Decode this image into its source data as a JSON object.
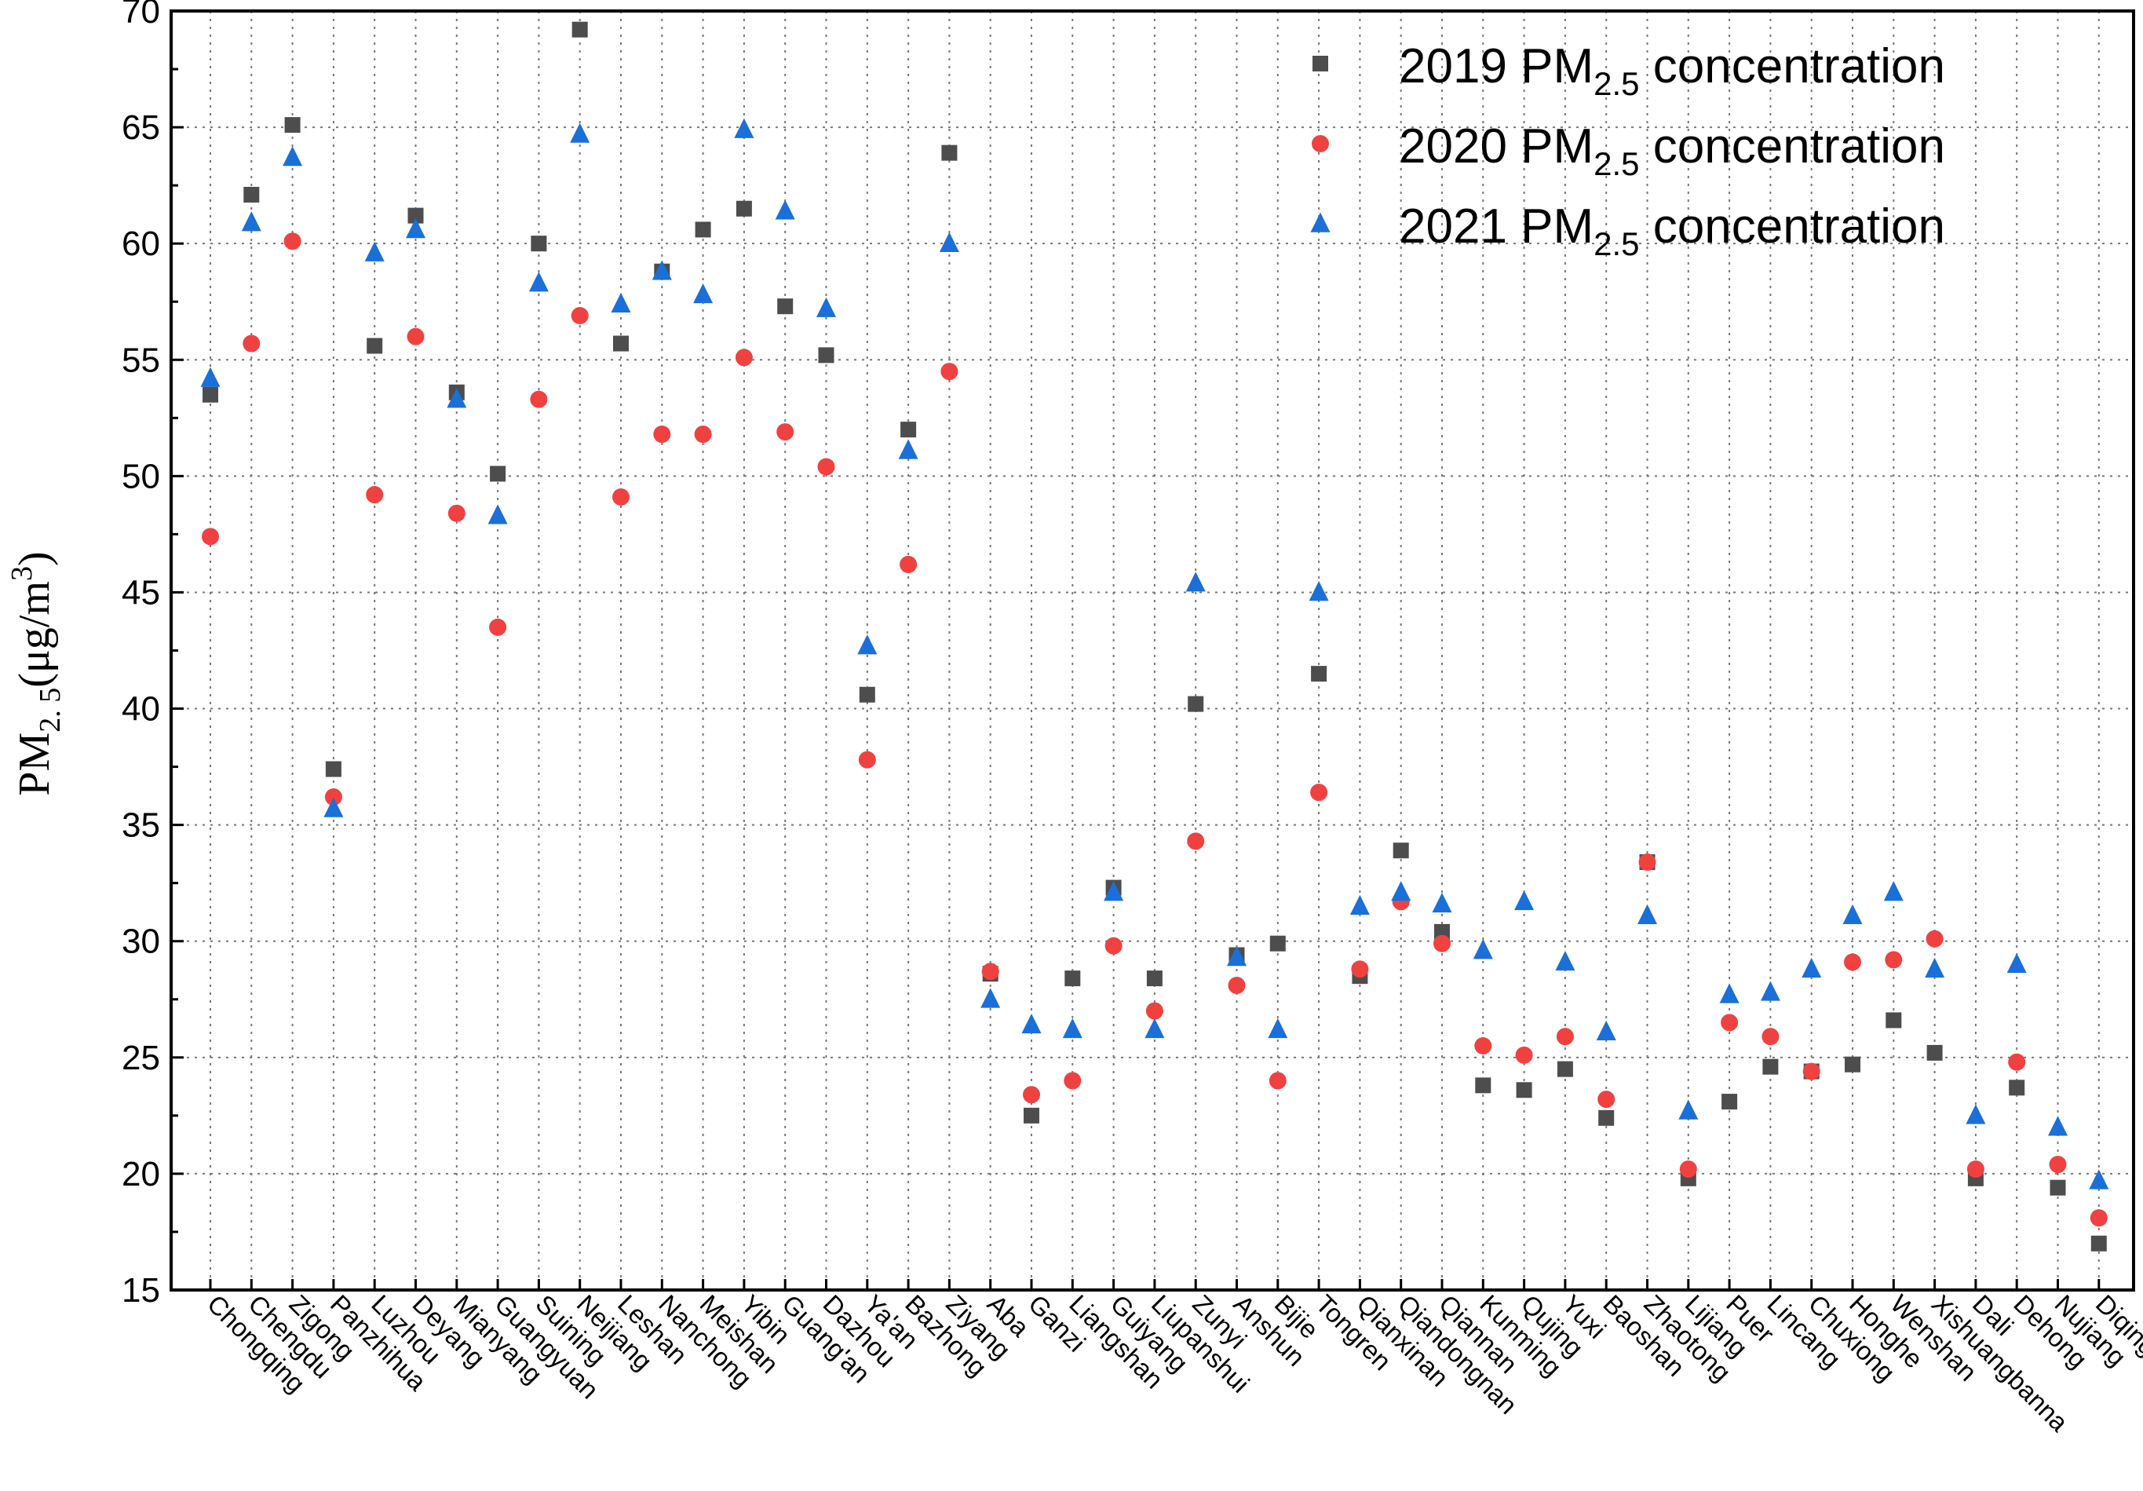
{
  "chart_data": {
    "type": "scatter",
    "title": "",
    "xlabel": "",
    "ylabel_parts": {
      "main": "PM",
      "sub": "2. 5",
      "unit_open": "(μg/m",
      "unit_sup": "3",
      "unit_close": ")"
    },
    "ylim": [
      15,
      70
    ],
    "yticks": [
      15,
      20,
      25,
      30,
      35,
      40,
      45,
      50,
      55,
      60,
      65,
      70
    ],
    "grid": true,
    "legend_position": "top-right",
    "categories": [
      "Chongqing",
      "Chengdu",
      "Zigong",
      "Panzhihua",
      "Luzhou",
      "Deyang",
      "Mianyang",
      "Guangyuan",
      "Suining",
      "Neijiang",
      "Leshan",
      "Nanchong",
      "Meishan",
      "Yibin",
      "Guang'an",
      "Dazhou",
      "Ya'an",
      "Bazhong",
      "Ziyang",
      "Aba",
      "Ganzi",
      "Liangshan",
      "Guiyang",
      "Liupanshui",
      "Zunyi",
      "Anshun",
      "Bijie",
      "Tongren",
      "Qianxinan",
      "Qiandongnan",
      "Qiannan",
      "Kunming",
      "Qujing",
      "Yuxi",
      "Baoshan",
      "Zhaotong",
      "Lijiang",
      "Puer",
      "Lincang",
      "Chuxiong",
      "Honghe",
      "Wenshan",
      "Xishuangbanna",
      "Dali",
      "Dehong",
      "Nujiang",
      "Diqing"
    ],
    "series": [
      {
        "name": "2019 PM2.5 concentration",
        "legend_prefix": "2019 PM",
        "legend_sub": "2.5",
        "legend_suffix": " concentration",
        "marker": "square",
        "color": "#4d4d4d",
        "values": [
          53.5,
          62.1,
          65.1,
          37.4,
          55.6,
          61.2,
          53.6,
          50.1,
          60.0,
          69.2,
          55.7,
          58.8,
          60.6,
          61.5,
          57.3,
          55.2,
          40.6,
          52.0,
          63.9,
          28.6,
          22.5,
          28.4,
          32.3,
          28.4,
          40.2,
          29.4,
          29.9,
          41.5,
          28.5,
          33.9,
          30.4,
          23.8,
          23.6,
          24.5,
          22.4,
          33.4,
          19.8,
          23.1,
          24.6,
          24.4,
          24.7,
          26.6,
          25.2,
          19.8,
          23.7,
          19.4,
          17.0
        ]
      },
      {
        "name": "2020 PM2.5 concentration",
        "legend_prefix": "2020 PM",
        "legend_sub": "2.5",
        "legend_suffix": " concentration",
        "marker": "circle",
        "color": "#f04141",
        "values": [
          47.4,
          55.7,
          60.1,
          36.2,
          49.2,
          56.0,
          48.4,
          43.5,
          53.3,
          56.9,
          49.1,
          51.8,
          51.8,
          55.1,
          51.9,
          50.4,
          37.8,
          46.2,
          54.5,
          28.7,
          23.4,
          24.0,
          29.8,
          27.0,
          34.3,
          28.1,
          24.0,
          36.4,
          28.8,
          31.7,
          29.9,
          25.5,
          25.1,
          25.9,
          23.2,
          33.4,
          20.2,
          26.5,
          25.9,
          24.4,
          29.1,
          29.2,
          30.1,
          20.2,
          24.8,
          20.4,
          18.1
        ]
      },
      {
        "name": "2021 PM2.5 concentration",
        "legend_prefix": "2021 PM",
        "legend_sub": "2.5",
        "legend_suffix": " concentration",
        "marker": "triangle",
        "color": "#1a6fd9",
        "values": [
          54.2,
          60.9,
          63.7,
          35.7,
          59.6,
          60.6,
          53.3,
          48.3,
          58.3,
          64.7,
          57.4,
          58.8,
          57.8,
          64.9,
          61.4,
          57.2,
          42.7,
          51.1,
          60.0,
          27.5,
          26.4,
          26.2,
          32.1,
          26.2,
          45.4,
          29.3,
          26.2,
          45.0,
          31.5,
          32.1,
          31.6,
          29.6,
          31.7,
          29.1,
          26.1,
          31.1,
          22.7,
          27.7,
          27.8,
          28.8,
          31.1,
          32.1,
          28.8,
          22.5,
          29.0,
          22.0,
          19.7
        ]
      }
    ]
  }
}
